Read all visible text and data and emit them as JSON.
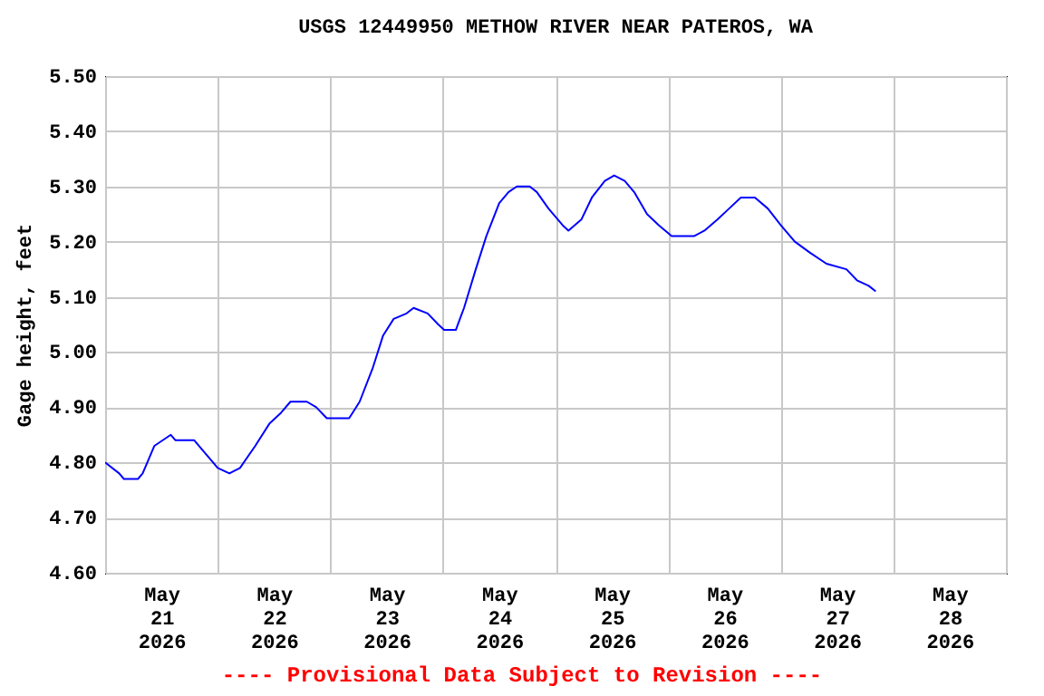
{
  "chart_data": {
    "type": "line",
    "title": "USGS 12449950 METHOW RIVER NEAR PATEROS, WA",
    "ylabel": "Gage height, feet",
    "annotations": [
      "---- Provisional Data Subject to Revision ----"
    ],
    "x": [
      "2026-05-21T00:00",
      "2026-05-21T03:00",
      "2026-05-21T04:00",
      "2026-05-21T07:00",
      "2026-05-21T08:00",
      "2026-05-21T10:30",
      "2026-05-21T14:00",
      "2026-05-21T15:00",
      "2026-05-21T19:00",
      "2026-05-21T21:00",
      "2026-05-22T00:00",
      "2026-05-22T02:30",
      "2026-05-22T04:45",
      "2026-05-22T08:00",
      "2026-05-22T11:00",
      "2026-05-22T13:30",
      "2026-05-22T15:30",
      "2026-05-22T19:00",
      "2026-05-22T21:00",
      "2026-05-22T23:15",
      "2026-05-23T04:00",
      "2026-05-23T04:45",
      "2026-05-23T06:15",
      "2026-05-23T09:00",
      "2026-05-23T11:15",
      "2026-05-23T13:30",
      "2026-05-23T16:15",
      "2026-05-23T17:45",
      "2026-05-23T20:45",
      "2026-05-23T23:00",
      "2026-05-24T00:15",
      "2026-05-24T02:45",
      "2026-05-24T04:30",
      "2026-05-24T07:00",
      "2026-05-24T09:15",
      "2026-05-24T12:00",
      "2026-05-24T14:00",
      "2026-05-24T15:45",
      "2026-05-24T18:30",
      "2026-05-24T20:00",
      "2026-05-24T22:30",
      "2026-05-25T01:30",
      "2026-05-25T02:45",
      "2026-05-25T05:30",
      "2026-05-25T07:45",
      "2026-05-25T10:30",
      "2026-05-25T12:30",
      "2026-05-25T14:45",
      "2026-05-25T16:45",
      "2026-05-25T19:30",
      "2026-05-25T22:00",
      "2026-05-26T00:45",
      "2026-05-26T05:30",
      "2026-05-26T07:45",
      "2026-05-26T10:30",
      "2026-05-26T13:00",
      "2026-05-26T15:30",
      "2026-05-26T18:30",
      "2026-05-26T21:15",
      "2026-05-27T00:00",
      "2026-05-27T03:00",
      "2026-05-27T06:15",
      "2026-05-27T09:45",
      "2026-05-27T14:00",
      "2026-05-27T16:15",
      "2026-05-27T18:45",
      "2026-05-27T20:15"
    ],
    "series": [
      {
        "color": "#0000ff",
        "values": [
          4.8,
          4.78,
          4.77,
          4.77,
          4.78,
          4.83,
          4.85,
          4.84,
          4.84,
          4.82,
          4.79,
          4.78,
          4.79,
          4.83,
          4.87,
          4.89,
          4.91,
          4.91,
          4.9,
          4.88,
          4.88,
          4.89,
          4.91,
          4.97,
          5.03,
          5.06,
          5.07,
          5.08,
          5.07,
          5.05,
          5.04,
          5.04,
          5.08,
          5.15,
          5.21,
          5.27,
          5.29,
          5.3,
          5.3,
          5.29,
          5.26,
          5.23,
          5.22,
          5.24,
          5.28,
          5.31,
          5.32,
          5.31,
          5.29,
          5.25,
          5.23,
          5.21,
          5.21,
          5.22,
          5.24,
          5.26,
          5.28,
          5.28,
          5.26,
          5.23,
          5.2,
          5.18,
          5.16,
          5.15,
          5.13,
          5.12,
          5.11
        ]
      }
    ],
    "xlim": [
      "2026-05-21T00:00",
      "2026-05-29T00:00"
    ],
    "xticks": [
      {
        "value": "2026-05-21T00:00",
        "label": null
      },
      {
        "value": "2026-05-21T12:00",
        "label": "May 21 2026"
      },
      {
        "value": "2026-05-22T00:00",
        "label": null
      },
      {
        "value": "2026-05-22T12:00",
        "label": "May 22 2026"
      },
      {
        "value": "2026-05-23T00:00",
        "label": null
      },
      {
        "value": "2026-05-23T12:00",
        "label": "May 23 2026"
      },
      {
        "value": "2026-05-24T00:00",
        "label": null
      },
      {
        "value": "2026-05-24T12:00",
        "label": "May 24 2026"
      },
      {
        "value": "2026-05-25T00:00",
        "label": null
      },
      {
        "value": "2026-05-25T12:00",
        "label": "May 25 2026"
      },
      {
        "value": "2026-05-26T00:00",
        "label": null
      },
      {
        "value": "2026-05-26T12:00",
        "label": "May 26 2026"
      },
      {
        "value": "2026-05-27T00:00",
        "label": null
      },
      {
        "value": "2026-05-27T12:00",
        "label": "May 27 2026"
      },
      {
        "value": "2026-05-28T00:00",
        "label": null
      },
      {
        "value": "2026-05-28T12:00",
        "label": "May 28 2026"
      },
      {
        "value": "2026-05-29T00:00",
        "label": null
      }
    ],
    "ylim": [
      4.6,
      5.5
    ],
    "yticks": [
      {
        "value": 4.6,
        "label": "4.60"
      },
      {
        "value": 4.7,
        "label": "4.70"
      },
      {
        "value": 4.8,
        "label": "4.80"
      },
      {
        "value": 4.9,
        "label": "4.90"
      },
      {
        "value": 5.0,
        "label": "5.00"
      },
      {
        "value": 5.1,
        "label": "5.10"
      },
      {
        "value": 5.2,
        "label": "5.20"
      },
      {
        "value": 5.3,
        "label": "5.30"
      },
      {
        "value": 5.4,
        "label": "5.40"
      },
      {
        "value": 5.5,
        "label": "5.50"
      }
    ],
    "grid": true
  }
}
